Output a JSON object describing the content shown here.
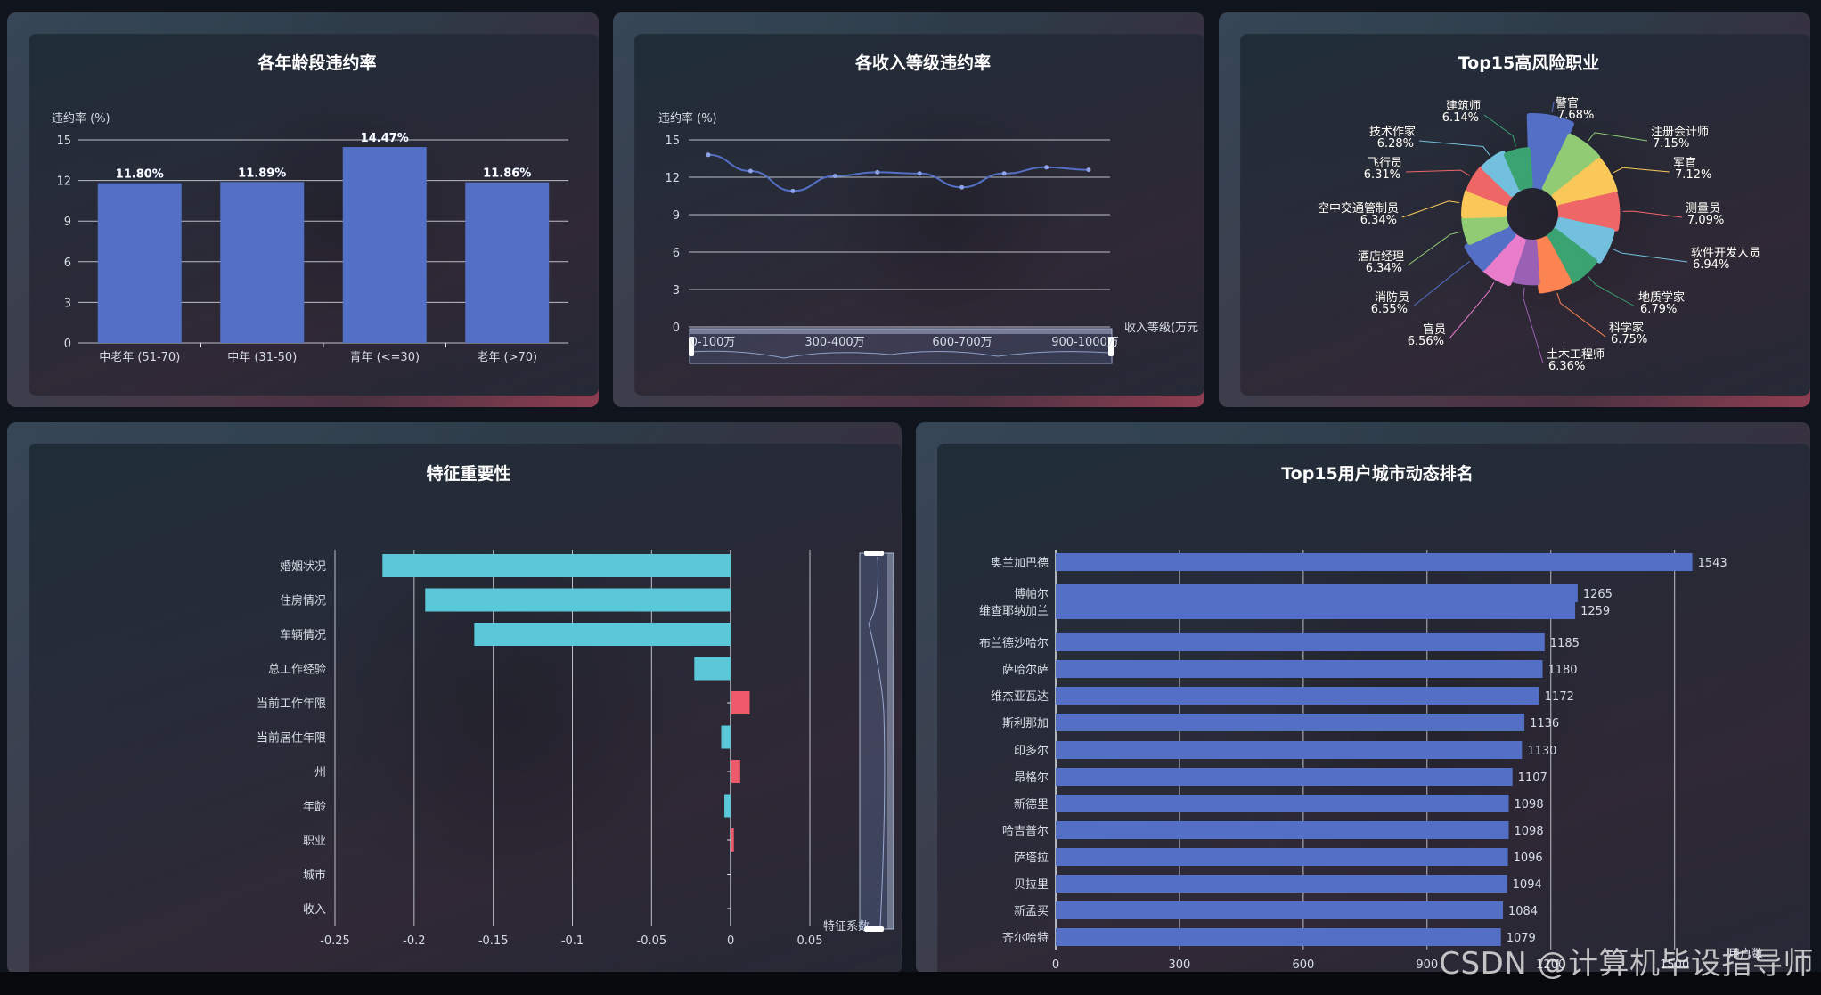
{
  "titles": {
    "age": "各年龄段违约率",
    "income": "各收入等级违约率",
    "jobs": "Top15高风险职业",
    "features": "特征重要性",
    "cities": "Top15用户城市动态排名"
  },
  "watermark": "CSDN @计算机毕设指导师",
  "colors": {
    "bar_blue": "#5470c6",
    "cyan": "#5ac8d8",
    "red": "#ee5a6b",
    "pie": [
      "#5470c6",
      "#91cc75",
      "#fac858",
      "#ee6666",
      "#73c0de",
      "#3ba272",
      "#fc8452",
      "#9a60b4",
      "#ea7ccc",
      "#5470c6",
      "#91cc75",
      "#fac858",
      "#ee6666",
      "#73c0de",
      "#3ba272"
    ]
  },
  "chart_data": [
    {
      "id": "age",
      "type": "bar",
      "title": "各年龄段违约率",
      "ylabel": "违约率 (%)",
      "ylim": [
        0,
        15
      ],
      "yticks": [
        "0",
        "3",
        "6",
        "9",
        "12",
        "15"
      ],
      "categories": [
        "中老年 (51-70)",
        "中年 (31-50)",
        "青年 (<=30)",
        "老年 (>70)"
      ],
      "values": [
        11.8,
        11.89,
        14.47,
        11.86
      ],
      "data_labels": [
        "11.80%",
        "11.89%",
        "14.47%",
        "11.86%"
      ],
      "grid": true
    },
    {
      "id": "income",
      "type": "line",
      "title": "各收入等级违约率",
      "ylabel": "违约率 (%)",
      "xlabel": "收入等级(万元",
      "ylim": [
        0,
        15
      ],
      "yticks": [
        "0",
        "3",
        "6",
        "9",
        "12",
        "15"
      ],
      "values": [
        13.8,
        12.5,
        10.9,
        12.1,
        12.4,
        12.3,
        11.2,
        12.3,
        12.8,
        12.6
      ],
      "slider_labels": [
        "0-100万",
        "300-400万",
        "600-700万",
        "900-1000万"
      ],
      "grid": true
    },
    {
      "id": "jobs",
      "type": "pie",
      "title": "Top15高风险职业",
      "slices": [
        {
          "label": "警官",
          "value": 7.68,
          "text": "7.68%"
        },
        {
          "label": "注册会计师",
          "value": 7.15,
          "text": "7.15%"
        },
        {
          "label": "军官",
          "value": 7.12,
          "text": "7.12%"
        },
        {
          "label": "测量员",
          "value": 7.09,
          "text": "7.09%"
        },
        {
          "label": "软件开发人员",
          "value": 6.94,
          "text": "6.94%"
        },
        {
          "label": "地质学家",
          "value": 6.79,
          "text": "6.79%"
        },
        {
          "label": "科学家",
          "value": 6.75,
          "text": "6.75%"
        },
        {
          "label": "土木工程师",
          "value": 6.36,
          "text": "6.36%"
        },
        {
          "label": "官员",
          "value": 6.56,
          "text": "6.56%"
        },
        {
          "label": "消防员",
          "value": 6.55,
          "text": "6.55%"
        },
        {
          "label": "酒店经理",
          "value": 6.34,
          "text": "6.34%"
        },
        {
          "label": "空中交通管制员",
          "value": 6.34,
          "text": "6.34%"
        },
        {
          "label": "飞行员",
          "value": 6.31,
          "text": "6.31%"
        },
        {
          "label": "技术作家",
          "value": 6.28,
          "text": "6.28%"
        },
        {
          "label": "建筑师",
          "value": 6.14,
          "text": "6.14%"
        }
      ]
    },
    {
      "id": "features",
      "type": "bar",
      "orientation": "horizontal",
      "title": "特征重要性",
      "xlabel": "特征系数",
      "xlim": [
        -0.25,
        0.05
      ],
      "xticks": [
        "-0.25",
        "-0.2",
        "-0.15",
        "-0.1",
        "-0.05",
        "0",
        "0.05"
      ],
      "categories": [
        "婚姻状况",
        "住房情况",
        "车辆情况",
        "总工作经验",
        "当前工作年限",
        "当前居住年限",
        "州",
        "年龄",
        "职业",
        "城市",
        "收入"
      ],
      "values": [
        -0.22,
        -0.193,
        -0.162,
        -0.023,
        0.012,
        -0.006,
        0.006,
        -0.004,
        0.002,
        0.0,
        0.0
      ]
    },
    {
      "id": "cities",
      "type": "bar",
      "orientation": "horizontal",
      "title": "Top15用户城市动态排名",
      "xlabel": "用户数",
      "xlim": [
        0,
        1600
      ],
      "xticks": [
        "0",
        "300",
        "600",
        "900",
        "1200",
        "1500"
      ],
      "categories": [
        "奥兰加巴德",
        "博帕尔",
        "维查耶纳加兰",
        "布兰德沙哈尔",
        "萨哈尔萨",
        "维杰亚瓦达",
        "斯利那加",
        "印多尔",
        "昂格尔",
        "新德里",
        "哈吉普尔",
        "萨塔拉",
        "贝拉里",
        "新孟买",
        "齐尔哈特"
      ],
      "values": [
        1543,
        1265,
        1259,
        1185,
        1180,
        1172,
        1136,
        1130,
        1107,
        1098,
        1098,
        1096,
        1094,
        1084,
        1079
      ]
    }
  ]
}
